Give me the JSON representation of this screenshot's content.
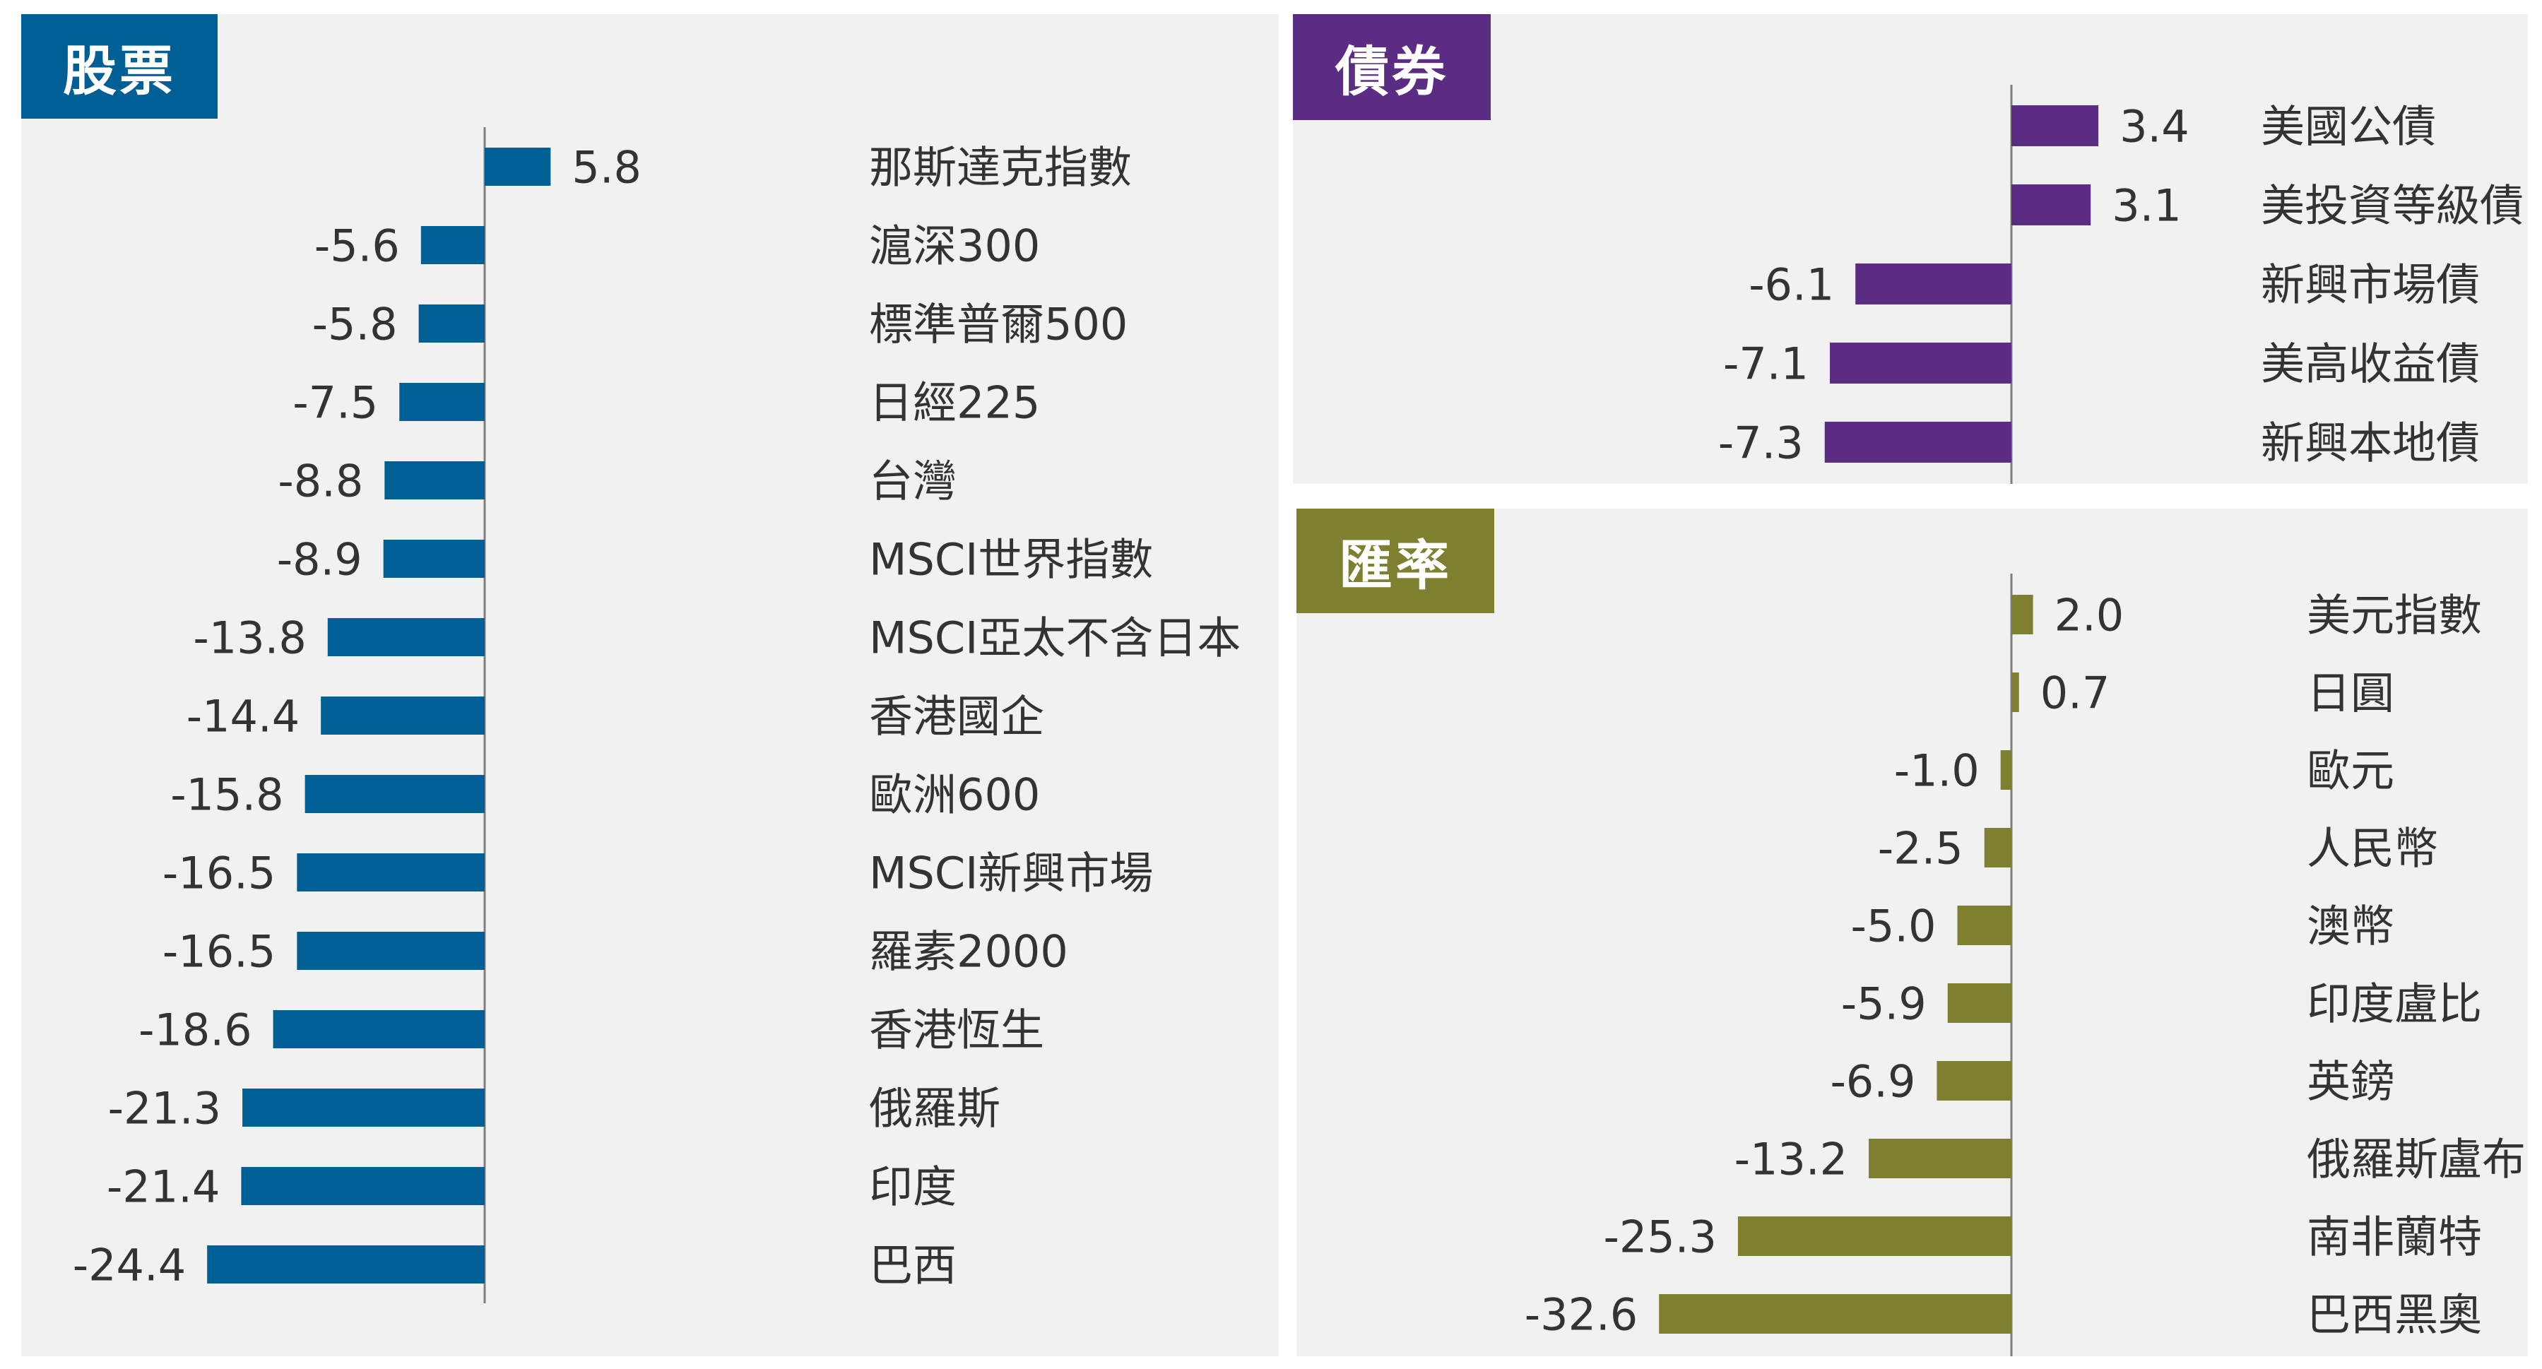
{
  "chart_data": [
    {
      "type": "bar",
      "orientation": "horizontal",
      "title": "股票",
      "color": "#005f94",
      "categories": [
        "那斯達克指數",
        "滬深300",
        "標準普爾500",
        "日經225",
        "台灣",
        "MSCI世界指數",
        "MSCI亞太不含日本",
        "香港國企",
        "歐洲600",
        "MSCI新興市場",
        "羅素2000",
        "香港恆生",
        "俄羅斯",
        "印度",
        "巴西"
      ],
      "values": [
        5.8,
        -5.6,
        -5.8,
        -7.5,
        -8.8,
        -8.9,
        -13.8,
        -14.4,
        -15.8,
        -16.5,
        -16.5,
        -18.6,
        -21.3,
        -21.4,
        -24.4
      ],
      "value_labels": [
        "5.8",
        "-5.6",
        "-5.8",
        "-7.5",
        "-8.8",
        "-8.9",
        "-13.8",
        "-14.4",
        "-15.8",
        "-16.5",
        "-16.5",
        "-18.6",
        "-21.3",
        "-21.4",
        "-24.4"
      ],
      "grid": false,
      "legend": "none"
    },
    {
      "type": "bar",
      "orientation": "horizontal",
      "title": "債券",
      "color": "#5b2c83",
      "categories": [
        "美國公債",
        "美投資等級債",
        "新興市場債",
        "美高收益債",
        "新興本地債"
      ],
      "values": [
        3.4,
        3.1,
        -6.1,
        -7.1,
        -7.3
      ],
      "value_labels": [
        "3.4",
        "3.1",
        "-6.1",
        "-7.1",
        "-7.3"
      ],
      "grid": false,
      "legend": "none"
    },
    {
      "type": "bar",
      "orientation": "horizontal",
      "title": "匯率",
      "color": "#7f7f30",
      "categories": [
        "美元指數",
        "日圓",
        "歐元",
        "人民幣",
        "澳幣",
        "印度盧比",
        "英鎊",
        "俄羅斯盧布",
        "南非蘭特",
        "巴西黑奧"
      ],
      "values": [
        2.0,
        0.7,
        -1.0,
        -2.5,
        -5.0,
        -5.9,
        -6.9,
        -13.2,
        -25.3,
        -32.6
      ],
      "value_labels": [
        "2.0",
        "0.7",
        "-1.0",
        "-2.5",
        "-5.0",
        "-5.9",
        "-6.9",
        "-13.2",
        "-25.3",
        "-32.6"
      ],
      "grid": false,
      "legend": "none"
    }
  ]
}
